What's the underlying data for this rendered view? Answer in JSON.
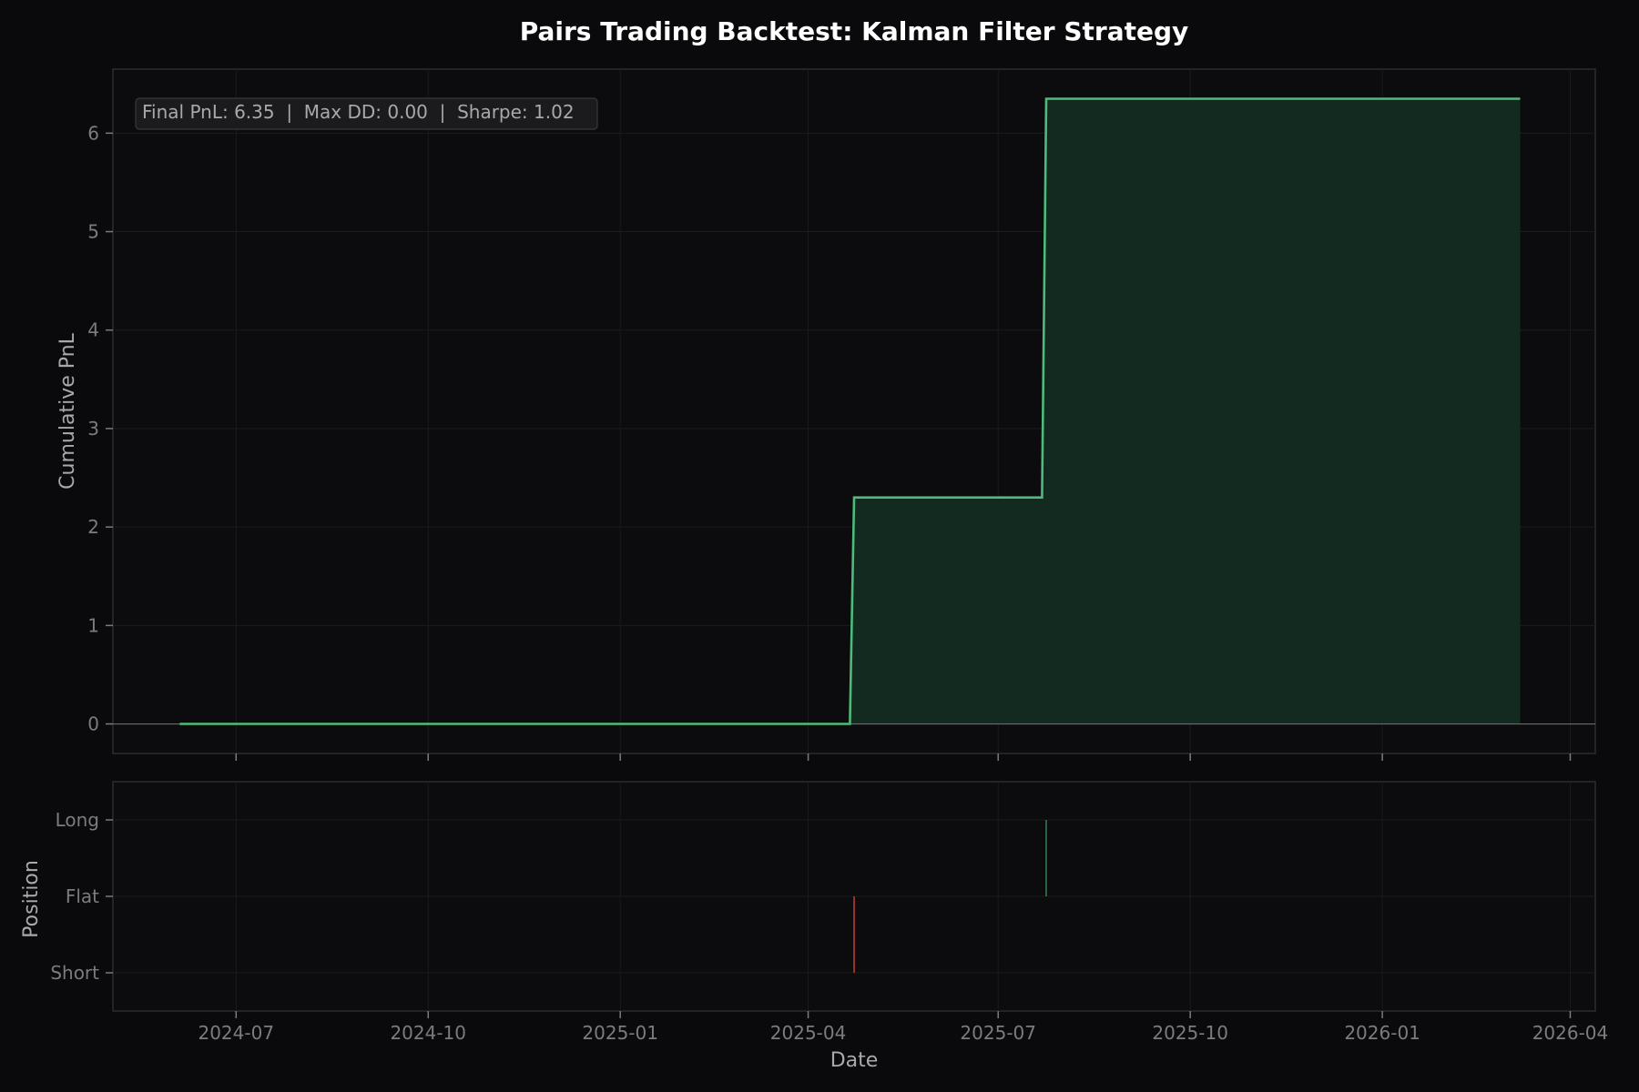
{
  "colors": {
    "background": "#0a0a0c",
    "panel": "#0c0c0f",
    "panel_border": "#2c2c30",
    "grid": "#1b1b1f",
    "tick_text": "#7b7b80",
    "label_text": "#a9a9ad",
    "title_text": "#ffffff",
    "pnl_line": "#4fbb7a",
    "pnl_fill": "#122a1f",
    "zero_line": "#6a6a70",
    "long_color": "#2f7a52",
    "short_color": "#c0392b",
    "annotation_bg": "#1b1b1e",
    "annotation_border": "#38383c",
    "annotation_text": "#a9a9ad"
  },
  "chart_data": {
    "title": "Pairs Trading Backtest: Kalman Filter Strategy",
    "xlabel": "Date",
    "x_range": [
      "2024-05-03",
      "2026-04-13"
    ],
    "x_ticks": [
      "2024-07-01",
      "2024-10-01",
      "2025-01-01",
      "2025-04-01",
      "2025-07-01",
      "2025-10-01",
      "2026-01-01",
      "2026-04-01"
    ],
    "x_tick_labels": [
      "2024-07",
      "2024-10",
      "2025-01",
      "2025-04",
      "2025-07",
      "2025-10",
      "2026-01",
      "2026-04"
    ],
    "grid": true,
    "annotation": "Final PnL: 6.35  |  Max DD: 0.00  |  Sharpe: 1.02",
    "pnl": {
      "type": "line",
      "ylabel": "Cumulative PnL",
      "ylim": [
        -0.3,
        6.65
      ],
      "y_ticks": [
        0,
        1,
        2,
        3,
        4,
        5,
        6
      ],
      "x": [
        "2024-06-04",
        "2025-04-21",
        "2025-04-23",
        "2025-07-22",
        "2025-07-24",
        "2026-03-08"
      ],
      "y": [
        0,
        0,
        2.3,
        2.3,
        6.35,
        6.35
      ]
    },
    "position": {
      "type": "bar",
      "ylabel": "Position",
      "ylim": [
        -1.5,
        1.5
      ],
      "y_ticks": [
        -1,
        0,
        1
      ],
      "y_tick_labels": [
        "Short",
        "Flat",
        "Long"
      ],
      "events": [
        {
          "date": "2025-04-23",
          "value": -1
        },
        {
          "date": "2025-07-24",
          "value": 1
        }
      ]
    }
  }
}
